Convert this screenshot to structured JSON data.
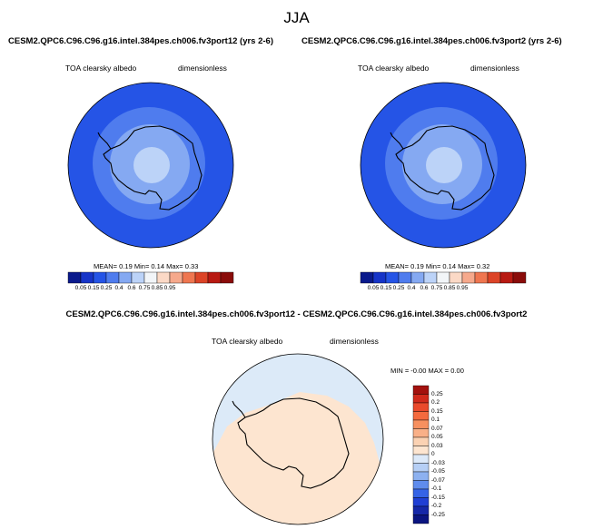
{
  "title": "JJA",
  "panels": [
    {
      "case": "CESM2.QPC6.C96.C96.g16.intel.384pes.ch006.fv3port12 (yrs 2-6)",
      "variable": "TOA clearsky albedo",
      "units": "dimensionless",
      "stats": {
        "mean_label": "MEAN=",
        "mean": "0.19",
        "min_label": "Min=",
        "min": "0.14",
        "max_label": "Max=",
        "max": "0.33"
      }
    },
    {
      "case": "CESM2.QPC6.C96.C96.g16.intel.384pes.ch006.fv3port2 (yrs 2-6)",
      "variable": "TOA clearsky albedo",
      "units": "dimensionless",
      "stats": {
        "mean_label": "MEAN=",
        "mean": "0.19",
        "min_label": "Min=",
        "min": "0.14",
        "max_label": "Max=",
        "max": "0.32"
      }
    }
  ],
  "colorbar": {
    "labels": [
      "0.05",
      "0.15",
      "0.25",
      "0.4",
      "0.6",
      "0.75",
      "0.85",
      "0.95"
    ],
    "colors": [
      "#0a1a8c",
      "#1634c8",
      "#2554e6",
      "#4f7cee",
      "#85a9f2",
      "#bcd3f8",
      "#f2f5f8",
      "#fbd9c6",
      "#f6a98c",
      "#ef7650",
      "#dc4427",
      "#b81a12",
      "#8a0c0a"
    ]
  },
  "difference": {
    "title": "CESM2.QPC6.C96.C96.g16.intel.384pes.ch006.fv3port12 - CESM2.QPC6.C96.C96.g16.intel.384pes.ch006.fv3port2",
    "variable": "TOA clearsky albedo",
    "units": "dimensionless",
    "minmax": "MIN = -0.00 MAX =  0.00",
    "colorbar_labels": [
      "0.25",
      "0.2",
      "0.15",
      "0.1",
      "0.07",
      "0.05",
      "0.03",
      "0",
      "-0.03",
      "-0.05",
      "-0.07",
      "-0.1",
      "-0.15",
      "-0.2",
      "-0.25"
    ],
    "colorbar_colors": [
      "#a3110e",
      "#d12a1c",
      "#ea4a2c",
      "#f46a3e",
      "#f7905f",
      "#f9b088",
      "#fbd2b3",
      "#fde5d0",
      "#dce9f9",
      "#b6cff5",
      "#8db1f0",
      "#5f8ced",
      "#3563e6",
      "#1f3fd4",
      "#1528a8",
      "#0a1580"
    ],
    "map_colors": {
      "ocean": "#dceaf8",
      "land": "#fde5d0"
    }
  },
  "polar_map_colors": [
    "#2554e6",
    "#4f7cee",
    "#85a9f2",
    "#bcd3f8"
  ]
}
